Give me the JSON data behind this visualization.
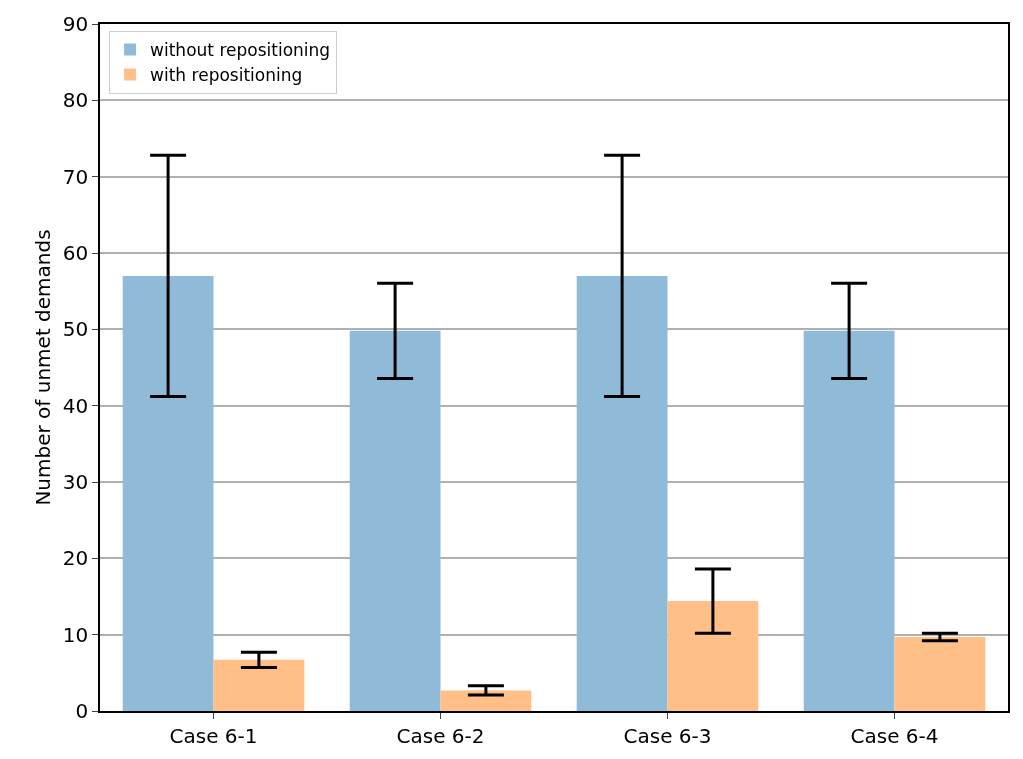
{
  "chart_data": {
    "type": "bar",
    "ylabel": "Number of unmet demands",
    "categories": [
      "Case 6-1",
      "Case 6-2",
      "Case 6-3",
      "Case 6-4"
    ],
    "series": [
      {
        "name": "without repositioning",
        "color": "#8fbbd9",
        "values": [
          57.0,
          49.8,
          57.0,
          49.8
        ],
        "errors": [
          15.8,
          6.25,
          15.8,
          6.25
        ]
      },
      {
        "name": "with repositioning",
        "color": "#ffbf86",
        "values": [
          6.7,
          2.7,
          14.4,
          9.7
        ],
        "errors": [
          1.0,
          0.6,
          4.2,
          0.5
        ]
      }
    ],
    "ylim": [
      0,
      90
    ],
    "yticks": [
      0,
      10,
      20,
      30,
      40,
      50,
      60,
      70,
      80,
      90
    ],
    "grid": "y",
    "legend": "top left"
  }
}
